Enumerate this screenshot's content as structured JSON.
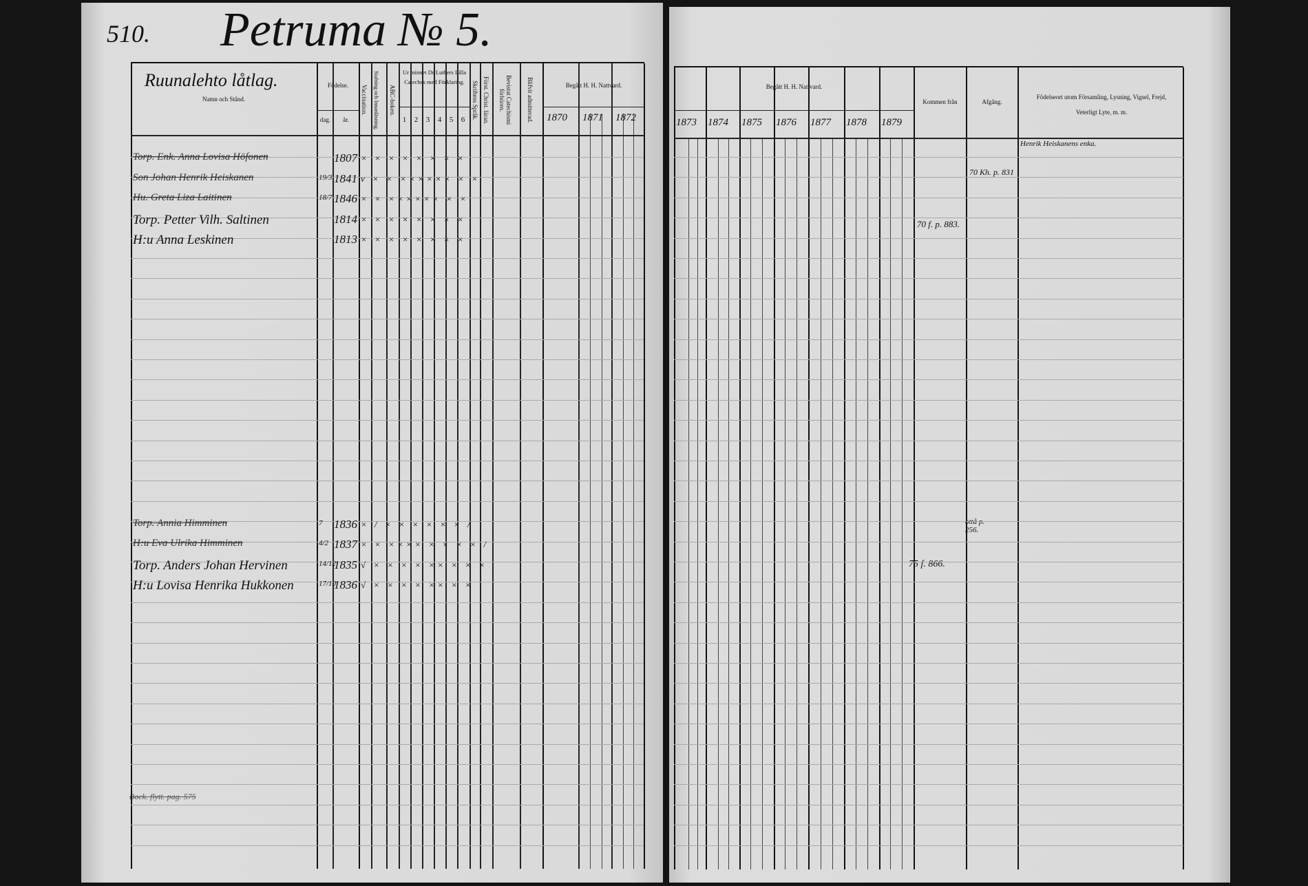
{
  "page_number": "510.",
  "village_title": "Petruma № 5.",
  "left": {
    "farm_name": "Ruunalehto låtlag.",
    "headers": {
      "name": "Namn och Stånd.",
      "birth": "Födelse.",
      "day": "dag.",
      "year": "år.",
      "vaccination": "Vaccination.",
      "reading": "Stafning och Innanläsning.",
      "abc": "ABC-boken.",
      "catechism": "Ur minnet Dr Luthers Lilla Cateches med Förklaring.",
      "catechism_cols": [
        "1",
        "2",
        "3",
        "4",
        "5",
        "6"
      ],
      "scripture": "Skriftens Språk.",
      "christ": "Först. Christ. läran.",
      "hearings": "Bevistat Catechismi förhören.",
      "admitted": "Blifvit admitterad.",
      "communion": "Begått H. H. Nattvard.",
      "years": [
        "1870",
        "1871",
        "1872"
      ]
    },
    "entries": [
      {
        "name": "Torp. Enk. Anna Lovisa Höfonen",
        "day": "",
        "year": "1807",
        "marks": "× × × × × × × ×",
        "struck": true
      },
      {
        "name": "Son Johan Henrik Heiskanen",
        "day": "19/3",
        "year": "1841",
        "marks": "v × × ×××××× × ×",
        "struck": true
      },
      {
        "name": "Hu. Greta Liza Laitinen",
        "day": "18/7",
        "year": "1846",
        "marks": "× × ×××××× × ×",
        "struck": true
      },
      {
        "name": "Torp. Petter Vilh. Saltinen",
        "day": "",
        "year": "1814",
        "marks": "× × × × × × × ×",
        "struck": false
      },
      {
        "name": "H:u Anna Leskinen",
        "day": "",
        "year": "1813",
        "marks": "× × × × × × × ×",
        "struck": false
      },
      {
        "name": "Torp. Annia Himminen",
        "day": "7",
        "year": "1836",
        "marks": "× / × × × × × × /",
        "struck": true
      },
      {
        "name": "H:u Eva Ulrika Himminen",
        "day": "4/2",
        "year": "1837",
        "marks": "× × ×××× × × × × /",
        "struck": true
      },
      {
        "name": "Torp. Anders Johan Hervinen",
        "day": "14/12",
        "year": "1835",
        "marks": "√ × × × × ×× × × ×",
        "struck": false
      },
      {
        "name": "H:u Lovisa Henrika Hukkonen",
        "day": "17/10",
        "year": "1836",
        "marks": "√ × × × × ×× × ×",
        "struck": false
      }
    ],
    "footer_note": "Bock. flytt. pag. 575"
  },
  "right": {
    "headers": {
      "communion": "Begått H. H. Nattvard.",
      "years": [
        "1873",
        "1874",
        "1875",
        "1876",
        "1877",
        "1878",
        "1879"
      ],
      "came_from": "Kommen från",
      "departure": "Afgång.",
      "remarks": "Födelseort utom Församling, Lysning, Vigsel, Frejd, Veterligt Lyte, m. m."
    },
    "notes": {
      "remark_1": "Henrik Heiskanens enka.",
      "departure_1": "70 Kh. p. 831",
      "came_from_1": "70 f. p. 883.",
      "came_from_2": "75 f. 866.",
      "departure_2": "ottå p. 256."
    }
  }
}
